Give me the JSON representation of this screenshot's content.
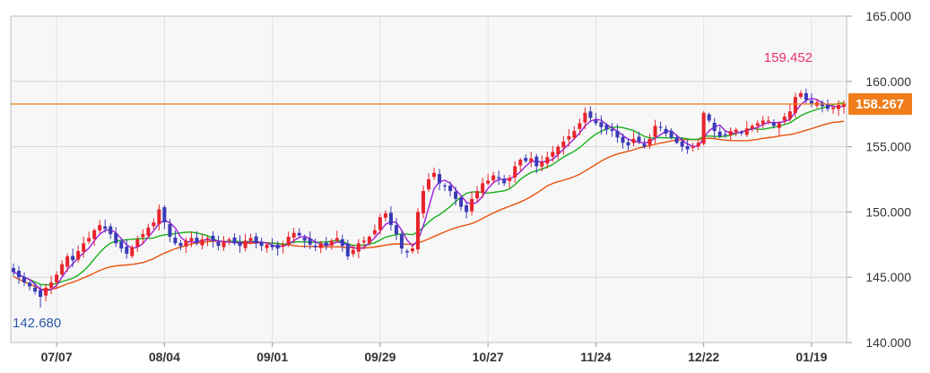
{
  "chart_data": {
    "type": "candlestick",
    "y_axis": {
      "range": [
        140.0,
        165.0
      ],
      "ticks": [
        "165.000",
        "160.000",
        "155.000",
        "150.000",
        "145.000",
        "140.000"
      ],
      "tick_values": [
        165,
        160,
        155,
        150,
        145,
        140
      ],
      "position": "right"
    },
    "x_axis": {
      "ticks": [
        "07/07",
        "08/04",
        "09/01",
        "09/29",
        "10/27",
        "11/24",
        "12/22",
        "01/19"
      ],
      "tick_index": [
        8,
        28,
        48,
        68,
        88,
        108,
        128,
        148
      ]
    },
    "current_price": {
      "label": "158.267",
      "value": 158.267,
      "color": "#f07d1a"
    },
    "high_annotation": {
      "label": "159.452",
      "value": 159.452,
      "index": 147,
      "color": "#e8336d"
    },
    "low_annotation": {
      "label": "142.680",
      "value": 142.68,
      "index": 5,
      "color": "#2a5aa8"
    },
    "colors": {
      "up": "#e8232c",
      "down": "#3a3ab8",
      "ma_short": "#9b1fd9",
      "ma_mid": "#18b018",
      "ma_long": "#e8520d"
    },
    "closes": [
      145.4,
      145.0,
      144.6,
      144.3,
      143.9,
      143.5,
      144.2,
      144.6,
      145.2,
      146.0,
      146.6,
      146.3,
      147.0,
      147.6,
      148.0,
      148.6,
      149.0,
      148.7,
      148.3,
      147.6,
      147.2,
      146.8,
      147.3,
      147.9,
      148.3,
      148.8,
      149.2,
      150.2,
      149.2,
      148.1,
      147.6,
      147.4,
      147.8,
      148.0,
      147.6,
      147.9,
      148.0,
      147.8,
      147.4,
      147.7,
      147.9,
      147.6,
      147.4,
      147.8,
      148.0,
      147.6,
      147.4,
      147.5,
      147.3,
      147.2,
      147.5,
      148.1,
      148.4,
      148.2,
      147.8,
      147.5,
      147.3,
      147.6,
      147.4,
      147.8,
      148.0,
      147.4,
      146.6,
      147.1,
      147.6,
      147.8,
      148.1,
      148.6,
      149.6,
      149.9,
      149.0,
      148.3,
      147.2,
      146.9,
      147.2,
      150.0,
      151.6,
      152.5,
      153.0,
      152.2,
      152.0,
      151.6,
      151.0,
      150.4,
      150.0,
      151.0,
      151.6,
      152.2,
      152.4,
      152.8,
      152.6,
      152.2,
      152.6,
      153.5,
      154.0,
      153.9,
      154.1,
      153.5,
      153.8,
      154.2,
      154.6,
      155.0,
      155.4,
      155.8,
      156.2,
      156.8,
      157.6,
      157.2,
      156.8,
      156.5,
      156.3,
      156.2,
      155.7,
      155.3,
      155.1,
      155.6,
      155.4,
      155.0,
      155.6,
      156.6,
      156.5,
      156.0,
      155.7,
      155.3,
      155.0,
      154.8,
      155.0,
      155.3,
      157.6,
      157.0,
      156.2,
      155.8,
      155.9,
      156.2,
      156.3,
      156.1,
      156.4,
      156.6,
      156.8,
      157.0,
      157.0,
      156.6,
      156.8,
      157.3,
      157.7,
      158.8,
      159.1,
      158.6,
      158.3,
      158.4,
      158.1,
      157.9,
      158.0,
      158.2,
      158.267
    ]
  }
}
